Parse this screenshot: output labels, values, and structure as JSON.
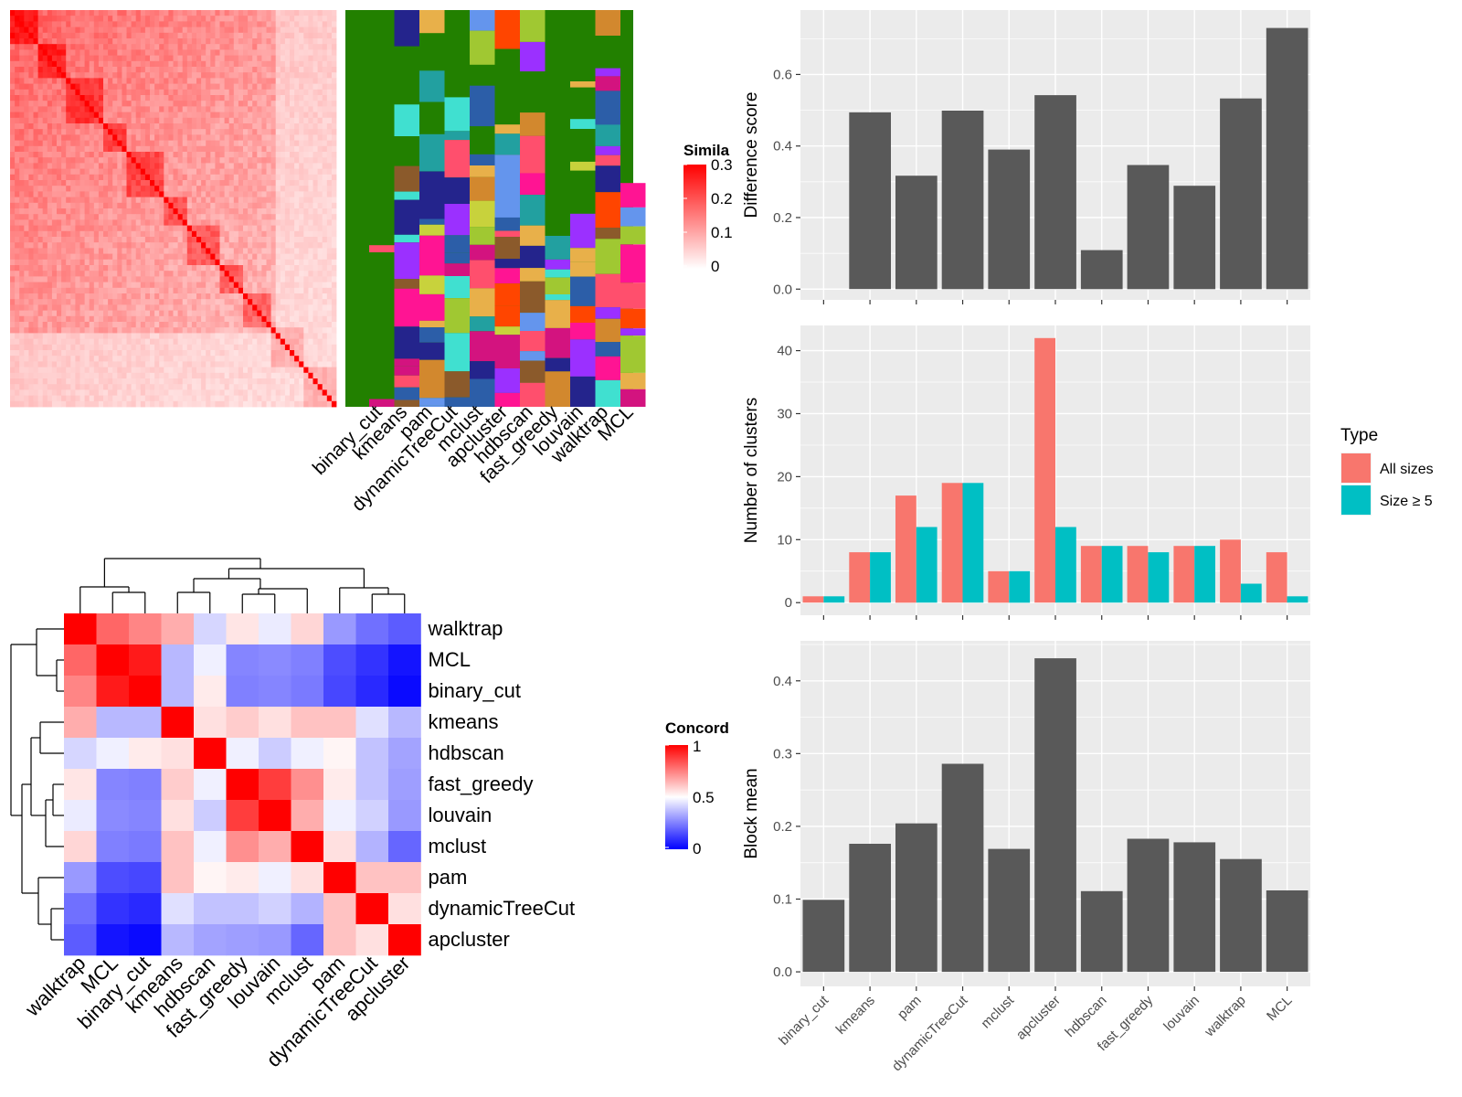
{
  "colors": {
    "panel_bg": "#ebebeb",
    "grid": "#ffffff",
    "bar": "#595959",
    "all_sizes": "#f8766d",
    "size_ge_5": "#00bfc4",
    "sim_low": "#ffffff",
    "sim_high": "#ff0000",
    "cluster_bg": "#228000",
    "conc_low": "#0000ff",
    "conc_mid": "#ffffff",
    "conc_high": "#ff0000"
  },
  "similarity_heatmap": {
    "legend_title": "Simila",
    "legend_ticks": [
      "0.3",
      "0.2",
      "0.1",
      "0"
    ],
    "methods": [
      "binary_cut",
      "kmeans",
      "pam",
      "dynamicTreeCut",
      "mclust",
      "apcluster",
      "hdbscan",
      "fast_greedy",
      "louvain",
      "walktrap",
      "MCL"
    ]
  },
  "concordance_heatmap": {
    "legend_title": "Concord",
    "legend_ticks": [
      "1",
      "0.5",
      "0"
    ],
    "row_labels": [
      "walktrap",
      "MCL",
      "binary_cut",
      "kmeans",
      "hdbscan",
      "fast_greedy",
      "louvain",
      "mclust",
      "pam",
      "dynamicTreeCut",
      "apcluster"
    ],
    "col_labels": [
      "walktrap",
      "MCL",
      "binary_cut",
      "kmeans",
      "hdbscan",
      "fast_greedy",
      "louvain",
      "mclust",
      "pam",
      "dynamicTreeCut",
      "apcluster"
    ],
    "matrix": [
      [
        1.0,
        0.8,
        0.74,
        0.66,
        0.42,
        0.55,
        0.46,
        0.58,
        0.3,
        0.22,
        0.18
      ],
      [
        0.8,
        1.0,
        0.95,
        0.36,
        0.47,
        0.26,
        0.27,
        0.25,
        0.15,
        0.1,
        0.04
      ],
      [
        0.74,
        0.95,
        1.0,
        0.36,
        0.54,
        0.25,
        0.26,
        0.24,
        0.14,
        0.08,
        0.02
      ],
      [
        0.66,
        0.36,
        0.36,
        1.0,
        0.56,
        0.6,
        0.56,
        0.62,
        0.62,
        0.44,
        0.36
      ],
      [
        0.42,
        0.47,
        0.54,
        0.56,
        1.0,
        0.47,
        0.4,
        0.47,
        0.52,
        0.38,
        0.32
      ],
      [
        0.55,
        0.26,
        0.25,
        0.6,
        0.47,
        1.0,
        0.88,
        0.72,
        0.54,
        0.38,
        0.31
      ],
      [
        0.46,
        0.27,
        0.26,
        0.56,
        0.4,
        0.88,
        1.0,
        0.66,
        0.47,
        0.41,
        0.3
      ],
      [
        0.58,
        0.25,
        0.24,
        0.62,
        0.47,
        0.72,
        0.66,
        1.0,
        0.56,
        0.35,
        0.2
      ],
      [
        0.3,
        0.15,
        0.14,
        0.62,
        0.52,
        0.54,
        0.47,
        0.56,
        1.0,
        0.62,
        0.62
      ],
      [
        0.22,
        0.1,
        0.08,
        0.44,
        0.38,
        0.38,
        0.41,
        0.35,
        0.62,
        1.0,
        0.56
      ],
      [
        0.18,
        0.04,
        0.02,
        0.36,
        0.32,
        0.31,
        0.3,
        0.2,
        0.62,
        0.56,
        1.0
      ]
    ]
  },
  "chart_data": [
    {
      "type": "bar",
      "categories": [
        "binary_cut",
        "kmeans",
        "pam",
        "dynamicTreeCut",
        "mclust",
        "apcluster",
        "hdbscan",
        "fast_greedy",
        "louvain",
        "walktrap",
        "MCL"
      ],
      "values": [
        0,
        0.494,
        0.317,
        0.499,
        0.39,
        0.542,
        0.109,
        0.347,
        0.289,
        0.533,
        0.73
      ],
      "ylabel": "Difference score",
      "ylim": [
        -0.03,
        0.78
      ],
      "yticks": [
        0.0,
        0.2,
        0.4,
        0.6
      ],
      "tick_labels": [
        "0.0",
        "0.2",
        "0.4",
        "0.6"
      ],
      "grid": true
    },
    {
      "type": "bar",
      "categories": [
        "binary_cut",
        "kmeans",
        "pam",
        "dynamicTreeCut",
        "mclust",
        "apcluster",
        "hdbscan",
        "fast_greedy",
        "louvain",
        "walktrap",
        "MCL"
      ],
      "series": [
        {
          "name": "All sizes",
          "values": [
            1,
            8,
            17,
            19,
            5,
            42,
            9,
            9,
            9,
            10,
            8
          ]
        },
        {
          "name": "Size ≥ 5",
          "values": [
            1,
            8,
            12,
            19,
            5,
            12,
            9,
            8,
            9,
            3,
            1
          ]
        }
      ],
      "ylabel": "Number of clusters",
      "ylim": [
        -2,
        44
      ],
      "yticks": [
        0,
        10,
        20,
        30,
        40
      ],
      "tick_labels": [
        "0",
        "10",
        "20",
        "30",
        "40"
      ],
      "legend_title": "Type",
      "legend_position": "right",
      "grid": true
    },
    {
      "type": "bar",
      "categories": [
        "binary_cut",
        "kmeans",
        "pam",
        "dynamicTreeCut",
        "mclust",
        "apcluster",
        "hdbscan",
        "fast_greedy",
        "louvain",
        "walktrap",
        "MCL"
      ],
      "values": [
        0.099,
        0.176,
        0.204,
        0.286,
        0.169,
        0.431,
        0.111,
        0.183,
        0.178,
        0.155,
        0.112
      ],
      "ylabel": "Block mean",
      "ylim": [
        -0.02,
        0.455
      ],
      "yticks": [
        0.0,
        0.1,
        0.2,
        0.3,
        0.4
      ],
      "tick_labels": [
        "0.0",
        "0.1",
        "0.2",
        "0.3",
        "0.4"
      ],
      "grid": true
    }
  ]
}
